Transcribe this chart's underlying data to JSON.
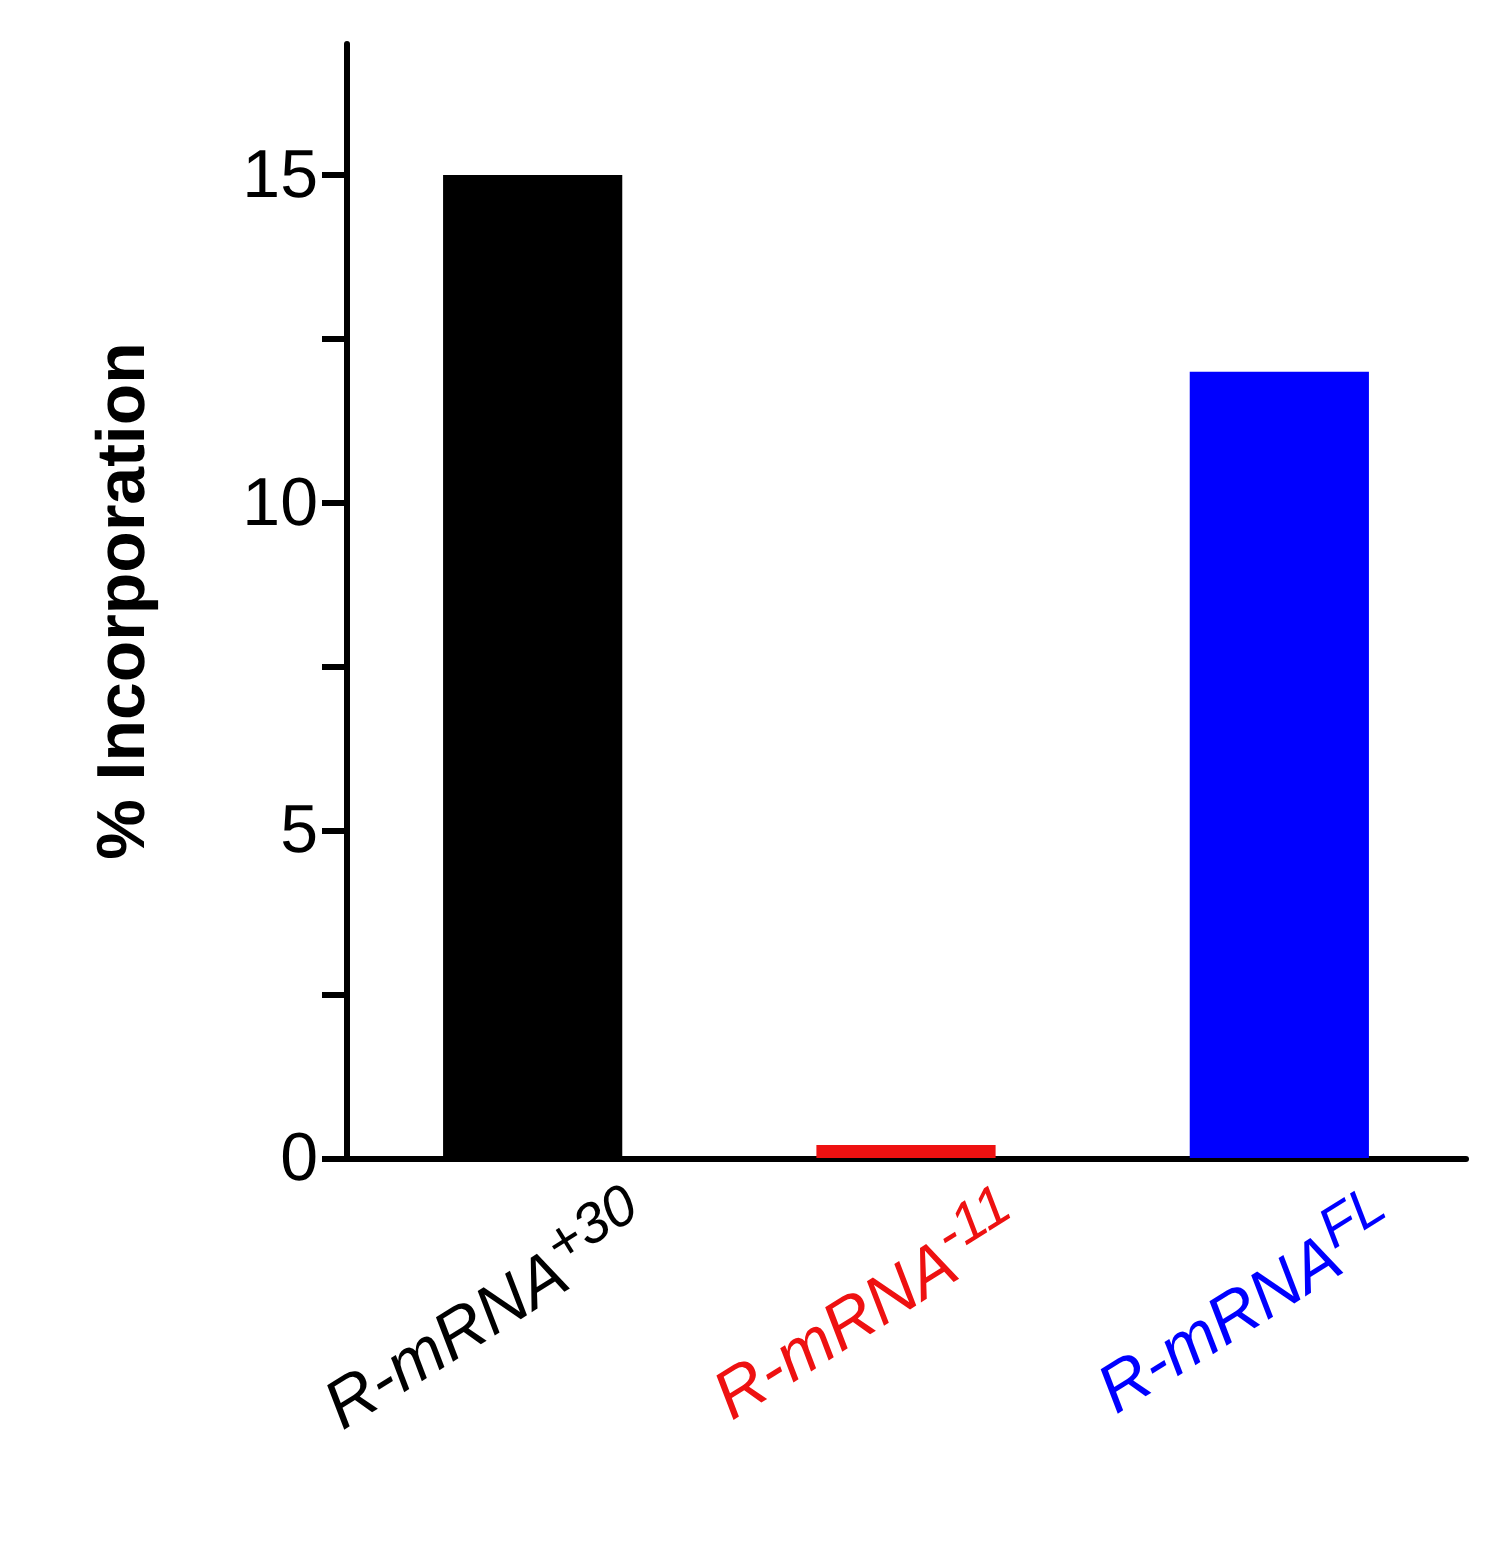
{
  "chart_data": {
    "type": "bar",
    "ylabel": "% Incorporation",
    "categories": [
      "R-mRNA$^{+30}$",
      "R-mRNA$^{-11}$",
      "R-mRNA$^{FL}$"
    ],
    "values": [
      15,
      0.2,
      12
    ],
    "colors": [
      "#000000",
      "#ee1111",
      "#0000ff"
    ],
    "ylim": [
      0,
      17
    ],
    "yticks": [
      0,
      {
        "value": 2.5,
        "label": null
      },
      5,
      {
        "value": 7.5,
        "label": null
      },
      10,
      {
        "value": 12.5,
        "label": null
      },
      15
    ],
    "grid": false
  }
}
